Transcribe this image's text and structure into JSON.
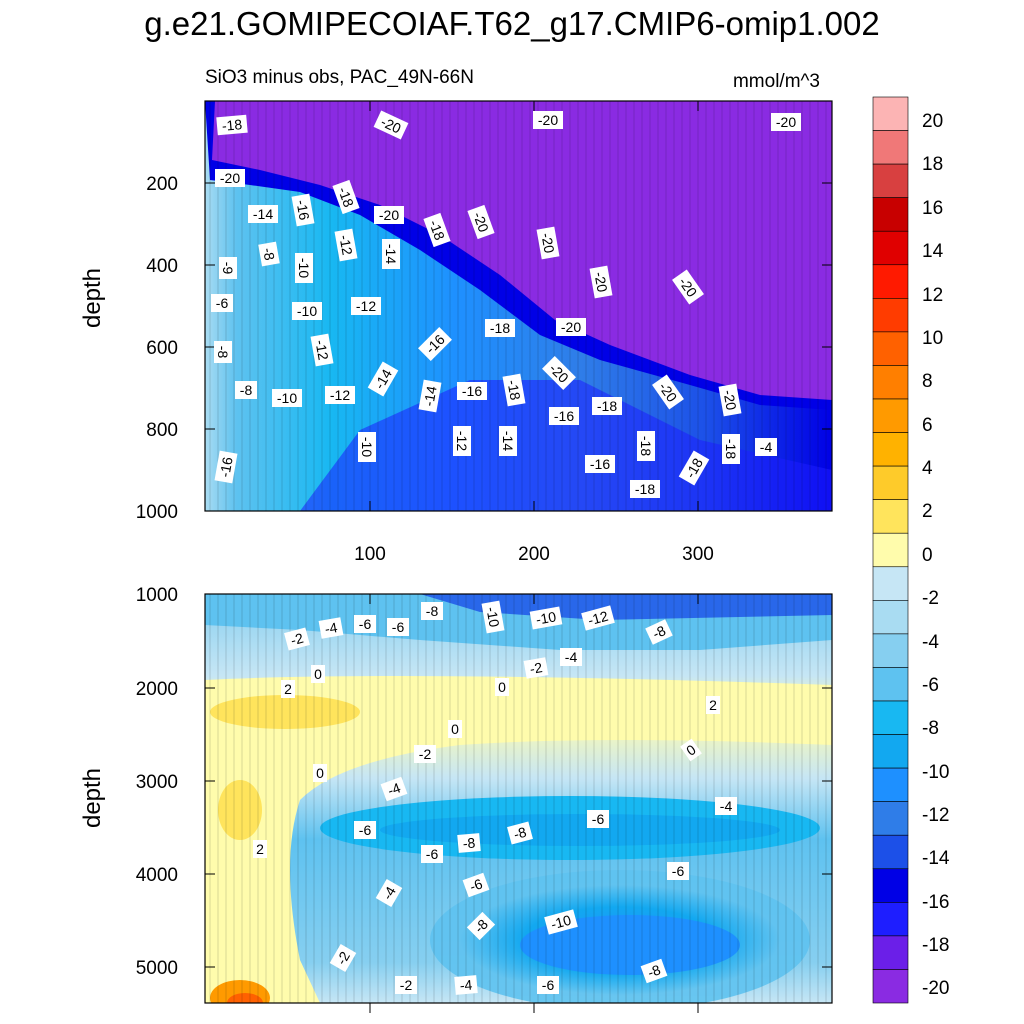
{
  "title": "g.e21.GOMIPECOIAF.T62_g17.CMIP6-omip1.002",
  "colors": {
    "levels": [
      "#8a2be2",
      "#6b1fe8",
      "#1e1eff",
      "#0000e6",
      "#1c50e8",
      "#2f7de8",
      "#1e90ff",
      "#12a8f0",
      "#18b8f2",
      "#5ec2f0",
      "#86cff0",
      "#a9dcf2",
      "#c6e6f5",
      "#fffcac",
      "#ffe45c",
      "#fecb2a",
      "#ffb200",
      "#ff9a00",
      "#ff7f00",
      "#ff6100",
      "#ff3c00",
      "#ff1a00",
      "#e00000",
      "#c80000",
      "#d84040",
      "#f07878",
      "#fcb4b4"
    ]
  },
  "chart_data": [
    {
      "type": "heatmap",
      "subtitle": "SiO3 minus obs, PAC_49N-66N",
      "units": "mmol/m^3",
      "ylabel": "depth",
      "xlim": [
        0,
        375
      ],
      "ylim": [
        1000,
        0
      ],
      "xticks": [
        "100",
        "200",
        "300"
      ],
      "yticks": [
        "200",
        "400",
        "600",
        "800",
        "1000"
      ],
      "contour_labels": [
        "-18",
        "-20",
        "-20",
        "-20",
        "-20",
        "-14",
        "-16",
        "-18",
        "-20",
        "-18",
        "-20",
        "-20",
        "-9",
        "-8",
        "-10",
        "-12",
        "-14",
        "-20",
        "-20",
        "-6",
        "-10",
        "-12",
        "-16",
        "-18",
        "-20",
        "-8",
        "-12",
        "-14",
        "-20",
        "-8",
        "-10",
        "-12",
        "-14",
        "-16",
        "-18",
        "-16",
        "-18",
        "-20",
        "-20",
        "-10",
        "-12",
        "-14",
        "-18",
        "-18",
        "-18",
        "-4",
        "-16",
        "-16",
        "-18"
      ]
    },
    {
      "type": "heatmap",
      "ylabel": "depth",
      "xlim": [
        0,
        375
      ],
      "ylim": [
        5400,
        1000
      ],
      "yticks": [
        "1000",
        "2000",
        "3000",
        "4000",
        "5000"
      ],
      "contour_labels": [
        "-2",
        "-4",
        "-6",
        "-6",
        "-8",
        "-10",
        "-10",
        "-12",
        "-8",
        "0",
        "-2",
        "-4",
        "2",
        "0",
        "2",
        "0",
        "-2",
        "0",
        "0",
        "-4",
        "-4",
        "-6",
        "-8",
        "-8",
        "-6",
        "-6",
        "2",
        "-6",
        "-4",
        "-6",
        "-8",
        "-10",
        "-2",
        "-2",
        "-4",
        "-6",
        "-8"
      ]
    }
  ],
  "colorbar": {
    "labels": [
      "20",
      "18",
      "16",
      "14",
      "12",
      "10",
      "8",
      "6",
      "4",
      "2",
      "0",
      "-2",
      "-4",
      "-6",
      "-8",
      "-10",
      "-12",
      "-14",
      "-16",
      "-18",
      "-20"
    ]
  }
}
